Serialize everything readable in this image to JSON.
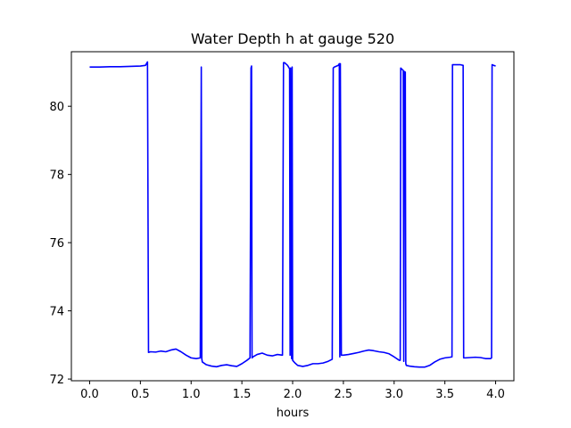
{
  "chart_data": {
    "type": "line",
    "title": "Water Depth h at gauge 520",
    "xlabel": "hours",
    "ylabel": "",
    "xlim": [
      -0.18,
      4.18
    ],
    "ylim": [
      71.95,
      81.6
    ],
    "xticks": [
      0.0,
      0.5,
      1.0,
      1.5,
      2.0,
      2.5,
      3.0,
      3.5,
      4.0
    ],
    "xtick_labels": [
      "0.0",
      "0.5",
      "1.0",
      "1.5",
      "2.0",
      "2.5",
      "3.0",
      "3.5",
      "4.0"
    ],
    "yticks": [
      72,
      74,
      76,
      78,
      80
    ],
    "ytick_labels": [
      "72",
      "74",
      "76",
      "78",
      "80"
    ],
    "grid": false,
    "series": [
      {
        "color": "#0000ff",
        "x": [
          0.0,
          0.1,
          0.2,
          0.3,
          0.4,
          0.5,
          0.55,
          0.57,
          0.58,
          0.6,
          0.65,
          0.7,
          0.75,
          0.8,
          0.85,
          0.9,
          0.95,
          1.0,
          1.05,
          1.09,
          1.1,
          1.105,
          1.11,
          1.15,
          1.2,
          1.25,
          1.3,
          1.35,
          1.4,
          1.45,
          1.5,
          1.55,
          1.58,
          1.59,
          1.595,
          1.6,
          1.605,
          1.61,
          1.65,
          1.7,
          1.75,
          1.8,
          1.85,
          1.9,
          1.91,
          1.92,
          1.95,
          1.97,
          1.975,
          1.98,
          1.99,
          1.995,
          2.0,
          2.02,
          2.05,
          2.1,
          2.15,
          2.2,
          2.25,
          2.3,
          2.35,
          2.39,
          2.4,
          2.41,
          2.45,
          2.46,
          2.465,
          2.47,
          2.48,
          2.5,
          2.55,
          2.6,
          2.65,
          2.7,
          2.75,
          2.8,
          2.85,
          2.9,
          2.95,
          3.0,
          3.05,
          3.06,
          3.065,
          3.09,
          3.095,
          3.1,
          3.11,
          3.115,
          3.12,
          3.15,
          3.2,
          3.25,
          3.3,
          3.35,
          3.4,
          3.45,
          3.5,
          3.55,
          3.57,
          3.575,
          3.6,
          3.65,
          3.68,
          3.685,
          3.7,
          3.75,
          3.8,
          3.85,
          3.9,
          3.95,
          3.96,
          3.965,
          3.98,
          4.0
        ],
        "y": [
          81.15,
          81.15,
          81.16,
          81.16,
          81.17,
          81.18,
          81.2,
          81.3,
          72.78,
          72.8,
          72.79,
          72.82,
          72.8,
          72.85,
          72.88,
          72.8,
          72.7,
          72.62,
          72.6,
          72.62,
          81.15,
          72.6,
          72.5,
          72.42,
          72.38,
          72.36,
          72.4,
          72.42,
          72.39,
          72.37,
          72.45,
          72.55,
          72.62,
          81.12,
          81.18,
          72.62,
          72.64,
          72.65,
          72.72,
          72.76,
          72.7,
          72.68,
          72.72,
          72.7,
          81.28,
          81.28,
          81.2,
          81.1,
          72.7,
          81.12,
          72.6,
          81.15,
          72.55,
          72.48,
          72.4,
          72.37,
          72.4,
          72.45,
          72.45,
          72.47,
          72.52,
          72.58,
          81.12,
          81.15,
          81.2,
          81.25,
          72.65,
          81.25,
          72.7,
          72.7,
          72.72,
          72.75,
          72.78,
          72.82,
          72.85,
          72.83,
          72.8,
          72.78,
          72.74,
          72.65,
          72.55,
          72.55,
          81.12,
          81.05,
          72.52,
          81.02,
          81.0,
          72.45,
          72.4,
          72.38,
          72.36,
          72.35,
          72.35,
          72.4,
          72.5,
          72.58,
          72.62,
          72.64,
          72.65,
          81.22,
          81.22,
          81.22,
          81.2,
          72.62,
          72.62,
          72.63,
          72.64,
          72.63,
          72.6,
          72.6,
          72.62,
          81.22,
          81.2,
          81.18
        ]
      }
    ]
  }
}
